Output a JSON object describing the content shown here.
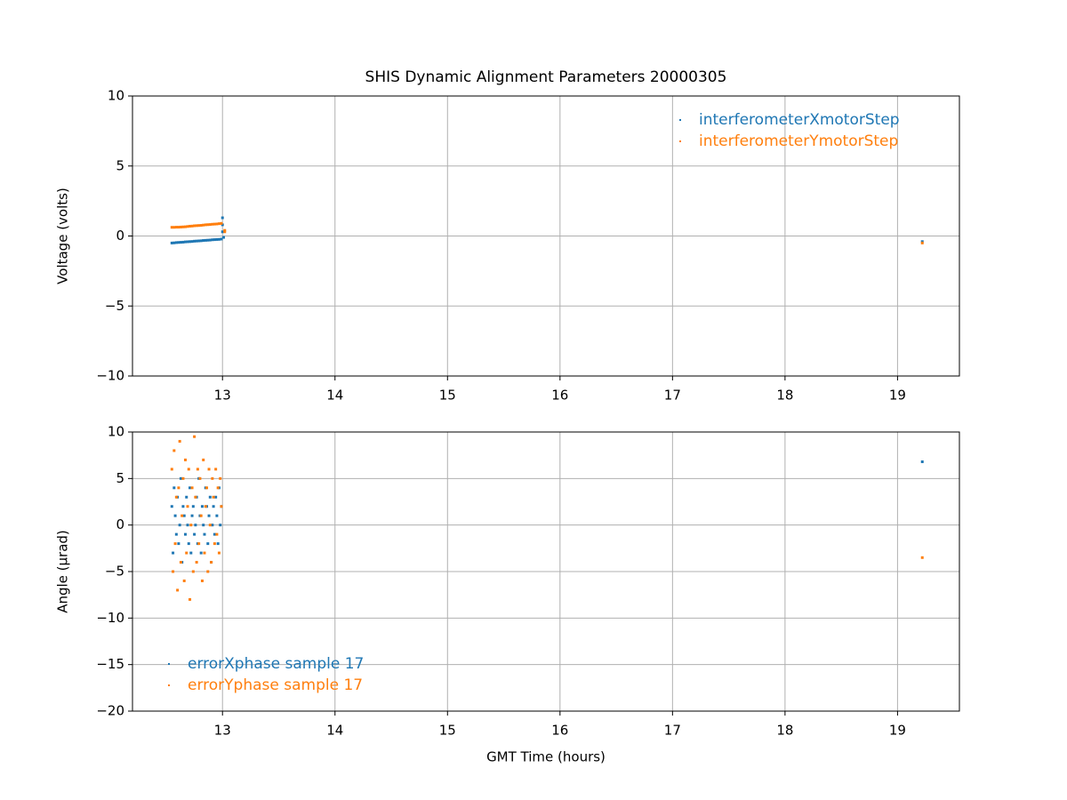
{
  "chart_data": [
    {
      "type": "scatter",
      "title": "SHIS Dynamic Alignment Parameters 20000305",
      "ylabel": "Voltage (volts)",
      "xlim": [
        12.2,
        19.55
      ],
      "xticks": [
        13,
        14,
        15,
        16,
        17,
        18,
        19
      ],
      "ylim": [
        -10,
        10
      ],
      "yticks": [
        {
          "value": -10,
          "label": "−10"
        },
        {
          "value": -5,
          "label": "−5"
        },
        0,
        5,
        10
      ],
      "grid": true,
      "legend": "upper right",
      "series": [
        {
          "name": "interferometerXmotorStep",
          "color": "#1f77b4",
          "x": [
            12.55,
            12.57,
            12.59,
            12.61,
            12.63,
            12.65,
            12.67,
            12.69,
            12.71,
            12.73,
            12.75,
            12.77,
            12.79,
            12.81,
            12.83,
            12.85,
            12.87,
            12.89,
            12.91,
            12.93,
            12.95,
            12.97,
            12.99,
            13.0,
            13.0,
            13.0,
            13.01,
            19.22
          ],
          "values": [
            -0.5,
            -0.49,
            -0.47,
            -0.46,
            -0.45,
            -0.44,
            -0.42,
            -0.41,
            -0.4,
            -0.39,
            -0.37,
            -0.36,
            -0.35,
            -0.34,
            -0.32,
            -0.31,
            -0.3,
            -0.29,
            -0.27,
            -0.26,
            -0.25,
            -0.24,
            -0.22,
            0.3,
            0.8,
            1.3,
            -0.1,
            -0.4
          ]
        },
        {
          "name": "interferometerYmotorStep",
          "color": "#ff7f0e",
          "x": [
            12.55,
            12.57,
            12.59,
            12.61,
            12.63,
            12.65,
            12.67,
            12.69,
            12.71,
            12.73,
            12.75,
            12.77,
            12.79,
            12.81,
            12.83,
            12.85,
            12.87,
            12.89,
            12.91,
            12.93,
            12.95,
            12.97,
            12.99,
            13.02,
            13.02,
            19.22
          ],
          "values": [
            0.62,
            0.62,
            0.63,
            0.63,
            0.64,
            0.65,
            0.66,
            0.68,
            0.7,
            0.71,
            0.73,
            0.74,
            0.75,
            0.76,
            0.78,
            0.8,
            0.81,
            0.82,
            0.84,
            0.85,
            0.86,
            0.88,
            0.9,
            0.4,
            0.3,
            -0.5
          ]
        }
      ]
    },
    {
      "type": "scatter",
      "ylabel": "Angle (μrad)",
      "xlabel": "GMT Time (hours)",
      "xlim": [
        12.2,
        19.55
      ],
      "xticks": [
        13,
        14,
        15,
        16,
        17,
        18,
        19
      ],
      "ylim": [
        -20,
        10
      ],
      "yticks": [
        {
          "value": -20,
          "label": "−20"
        },
        {
          "value": -15,
          "label": "−15"
        },
        {
          "value": -10,
          "label": "−10"
        },
        {
          "value": -5,
          "label": "−5"
        },
        0,
        5,
        10
      ],
      "grid": true,
      "legend": "lower left",
      "series": [
        {
          "name": "errorXphase sample 17",
          "color": "#1f77b4",
          "x": [
            12.55,
            12.56,
            12.57,
            12.58,
            12.59,
            12.6,
            12.61,
            12.62,
            12.63,
            12.64,
            12.65,
            12.66,
            12.67,
            12.68,
            12.69,
            12.7,
            12.71,
            12.72,
            12.73,
            12.74,
            12.75,
            12.76,
            12.77,
            12.78,
            12.79,
            12.8,
            12.81,
            12.82,
            12.83,
            12.84,
            12.85,
            12.86,
            12.87,
            12.88,
            12.89,
            12.9,
            12.91,
            12.92,
            12.93,
            12.94,
            12.95,
            12.96,
            12.97,
            12.98,
            12.99,
            19.22
          ],
          "values": [
            2,
            -3,
            4,
            1,
            -1,
            3,
            -2,
            0,
            5,
            -4,
            2,
            1,
            -1,
            3,
            0,
            -2,
            4,
            -3,
            1,
            2,
            -1,
            0,
            3,
            -2,
            5,
            1,
            -3,
            2,
            0,
            -1,
            4,
            2,
            -2,
            1,
            3,
            -4,
            0,
            2,
            -1,
            3,
            1,
            -2,
            4,
            0,
            2,
            6.8
          ]
        },
        {
          "name": "errorYphase sample 17",
          "color": "#ff7f0e",
          "x": [
            12.55,
            12.56,
            12.57,
            12.58,
            12.59,
            12.6,
            12.61,
            12.62,
            12.63,
            12.64,
            12.65,
            12.66,
            12.67,
            12.68,
            12.69,
            12.7,
            12.71,
            12.72,
            12.73,
            12.74,
            12.75,
            12.76,
            12.77,
            12.78,
            12.79,
            12.8,
            12.81,
            12.82,
            12.83,
            12.84,
            12.85,
            12.86,
            12.87,
            12.88,
            12.89,
            12.9,
            12.91,
            12.92,
            12.93,
            12.94,
            12.95,
            12.96,
            12.97,
            12.98,
            12.99,
            19.22
          ],
          "values": [
            6,
            -5,
            8,
            -2,
            3,
            -7,
            4,
            9,
            -4,
            1,
            5,
            -6,
            7,
            -3,
            2,
            6,
            -8,
            0,
            4,
            -5,
            9.5,
            3,
            -4,
            6,
            -2,
            5,
            1,
            -6,
            7,
            -3,
            2,
            4,
            -5,
            6,
            0,
            -4,
            5,
            3,
            -2,
            6,
            -1,
            4,
            -3,
            5,
            2,
            -3.5
          ]
        }
      ]
    }
  ]
}
